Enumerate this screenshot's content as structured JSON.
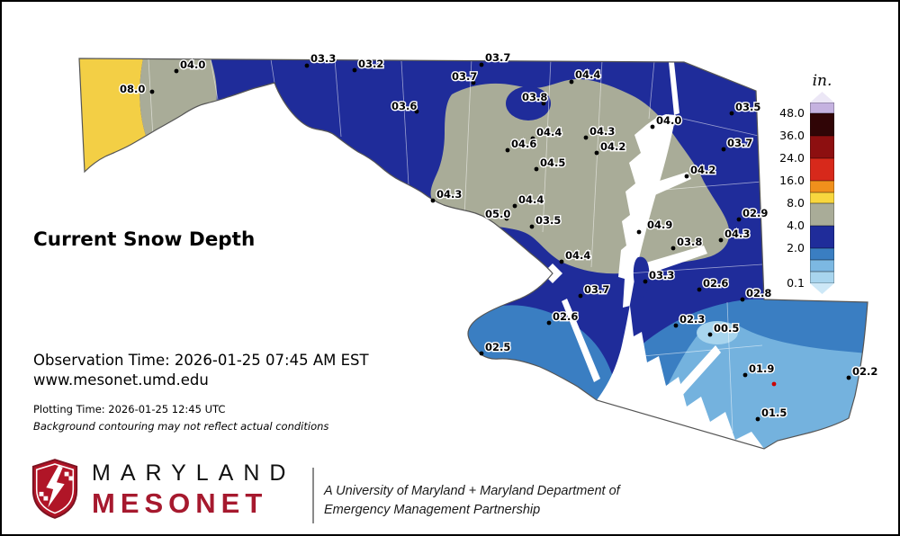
{
  "map": {
    "title": "Current Snow Depth",
    "observation_time": "Observation Time: 2026-01-25 07:45 AM EST",
    "website": "www.mesonet.umd.edu",
    "plotting_time": "Plotting Time: 2026-01-25 12:45 UTC",
    "disclaimer": "Background contouring may not reflect actual conditions",
    "stations": [
      {
        "value": "08.0",
        "label": [
          131,
          101
        ],
        "dot": [
          167,
          100
        ]
      },
      {
        "value": "04.0",
        "label": [
          198,
          74
        ],
        "dot": [
          194,
          77
        ]
      },
      {
        "value": "03.3",
        "label": [
          343,
          67
        ],
        "dot": [
          339,
          71
        ]
      },
      {
        "value": "03.2",
        "label": [
          396,
          73
        ],
        "dot": [
          392,
          76
        ]
      },
      {
        "value": "03.7",
        "label": [
          537,
          66
        ],
        "dot": [
          533,
          70
        ]
      },
      {
        "value": "03.7",
        "label": [
          500,
          87
        ],
        "dot": [
          524,
          90
        ]
      },
      {
        "value": "04.4",
        "label": [
          637,
          85
        ],
        "dot": [
          633,
          89
        ]
      },
      {
        "value": "03.8",
        "label": [
          578,
          110
        ],
        "dot": [
          602,
          113
        ]
      },
      {
        "value": "03.6",
        "label": [
          433,
          120
        ],
        "dot": [
          461,
          122
        ]
      },
      {
        "value": "04.0",
        "label": [
          727,
          136
        ],
        "dot": [
          723,
          139
        ]
      },
      {
        "value": "03.5",
        "label": [
          815,
          121
        ],
        "dot": [
          811,
          124
        ]
      },
      {
        "value": "04.4",
        "label": [
          594,
          149
        ],
        "dot": [
          590,
          152
        ]
      },
      {
        "value": "04.3",
        "label": [
          653,
          148
        ],
        "dot": [
          649,
          151
        ]
      },
      {
        "value": "04.6",
        "label": [
          566,
          162
        ],
        "dot": [
          562,
          165
        ]
      },
      {
        "value": "04.2",
        "label": [
          665,
          165
        ],
        "dot": [
          661,
          168
        ]
      },
      {
        "value": "03.7",
        "label": [
          806,
          161
        ],
        "dot": [
          802,
          164
        ]
      },
      {
        "value": "04.5",
        "label": [
          598,
          183
        ],
        "dot": [
          594,
          186
        ]
      },
      {
        "value": "04.2",
        "label": [
          765,
          191
        ],
        "dot": [
          761,
          194
        ]
      },
      {
        "value": "04.3",
        "label": [
          483,
          218
        ],
        "dot": [
          479,
          221
        ]
      },
      {
        "value": "04.4",
        "label": [
          574,
          224
        ],
        "dot": [
          570,
          227
        ]
      },
      {
        "value": "02.9",
        "label": [
          823,
          239
        ],
        "dot": [
          819,
          242
        ]
      },
      {
        "value": "05.0",
        "label": [
          537,
          240
        ],
        "dot": [
          561,
          241
        ]
      },
      {
        "value": "03.5",
        "label": [
          593,
          247
        ],
        "dot": [
          589,
          250
        ]
      },
      {
        "value": "04.9",
        "label": [
          717,
          252
        ],
        "dot": [
          708,
          256
        ]
      },
      {
        "value": "04.3",
        "label": [
          803,
          262
        ],
        "dot": [
          799,
          265
        ]
      },
      {
        "value": "03.8",
        "label": [
          750,
          271
        ],
        "dot": [
          746,
          274
        ]
      },
      {
        "value": "04.4",
        "label": [
          626,
          286
        ],
        "dot": [
          622,
          289
        ]
      },
      {
        "value": "03.3",
        "label": [
          719,
          308
        ],
        "dot": [
          715,
          311
        ]
      },
      {
        "value": "02.6",
        "label": [
          779,
          317
        ],
        "dot": [
          775,
          320
        ]
      },
      {
        "value": "03.7",
        "label": [
          647,
          324
        ],
        "dot": [
          643,
          327
        ]
      },
      {
        "value": "02.8",
        "label": [
          827,
          328
        ],
        "dot": [
          823,
          331
        ]
      },
      {
        "value": "02.3",
        "label": [
          753,
          357
        ],
        "dot": [
          749,
          360
        ]
      },
      {
        "value": "00.5",
        "label": [
          791,
          367
        ],
        "dot": [
          787,
          370
        ]
      },
      {
        "value": "02.6",
        "label": [
          612,
          354
        ],
        "dot": [
          608,
          357
        ]
      },
      {
        "value": "02.5",
        "label": [
          537,
          388
        ],
        "dot": [
          533,
          391
        ]
      },
      {
        "value": "01.9",
        "label": [
          830,
          412
        ],
        "dot": [
          826,
          415
        ]
      },
      {
        "value": "02.2",
        "label": [
          945,
          415
        ],
        "dot": [
          941,
          418
        ]
      },
      {
        "value": "01.5",
        "label": [
          844,
          461
        ],
        "dot": [
          840,
          464
        ]
      }
    ],
    "red_station_dot": [
      858,
      425
    ]
  },
  "legend": {
    "unit_label": "in.",
    "segments": [
      {
        "color": "#ece7f6",
        "h": 12,
        "cap": "up"
      },
      {
        "color": "#c5b2e0",
        "h": 12,
        "tick": "48.0"
      },
      {
        "color": "#300506",
        "h": 25,
        "tick": "36.0"
      },
      {
        "color": "#8d0f10",
        "h": 25,
        "tick": "24.0"
      },
      {
        "color": "#d7291b",
        "h": 25,
        "tick": "16.0"
      },
      {
        "color": "#f0901c",
        "h": 13
      },
      {
        "color": "#f8d73e",
        "h": 12,
        "tick": "8.0"
      },
      {
        "color": "#a9ac98",
        "h": 25,
        "tick": "4.0"
      },
      {
        "color": "#1f2c9a",
        "h": 25,
        "tick": "2.0"
      },
      {
        "color": "#3a7ec2",
        "h": 13
      },
      {
        "color": "#7cb8e2",
        "h": 13
      },
      {
        "color": "#a8d5ee",
        "h": 13,
        "tick": "0.1"
      },
      {
        "color": "#cde8f7",
        "h": 12,
        "cap": "down"
      }
    ]
  },
  "palette": {
    "band_yellow": "#f3cf45",
    "band_olive": "#a9ac98",
    "band_navy": "#1f2c9a",
    "band_medium_blue": "#3a7ec2",
    "band_light_blue": "#74b2de",
    "band_lightest_blue": "#a8d5ee",
    "brand_red": "#a6192e"
  },
  "footer": {
    "brand_line1": "MARYLAND",
    "brand_line2": "MESONET",
    "partnership_line1": "A University of Maryland + Maryland Department of",
    "partnership_line2": "Emergency Management Partnership"
  }
}
